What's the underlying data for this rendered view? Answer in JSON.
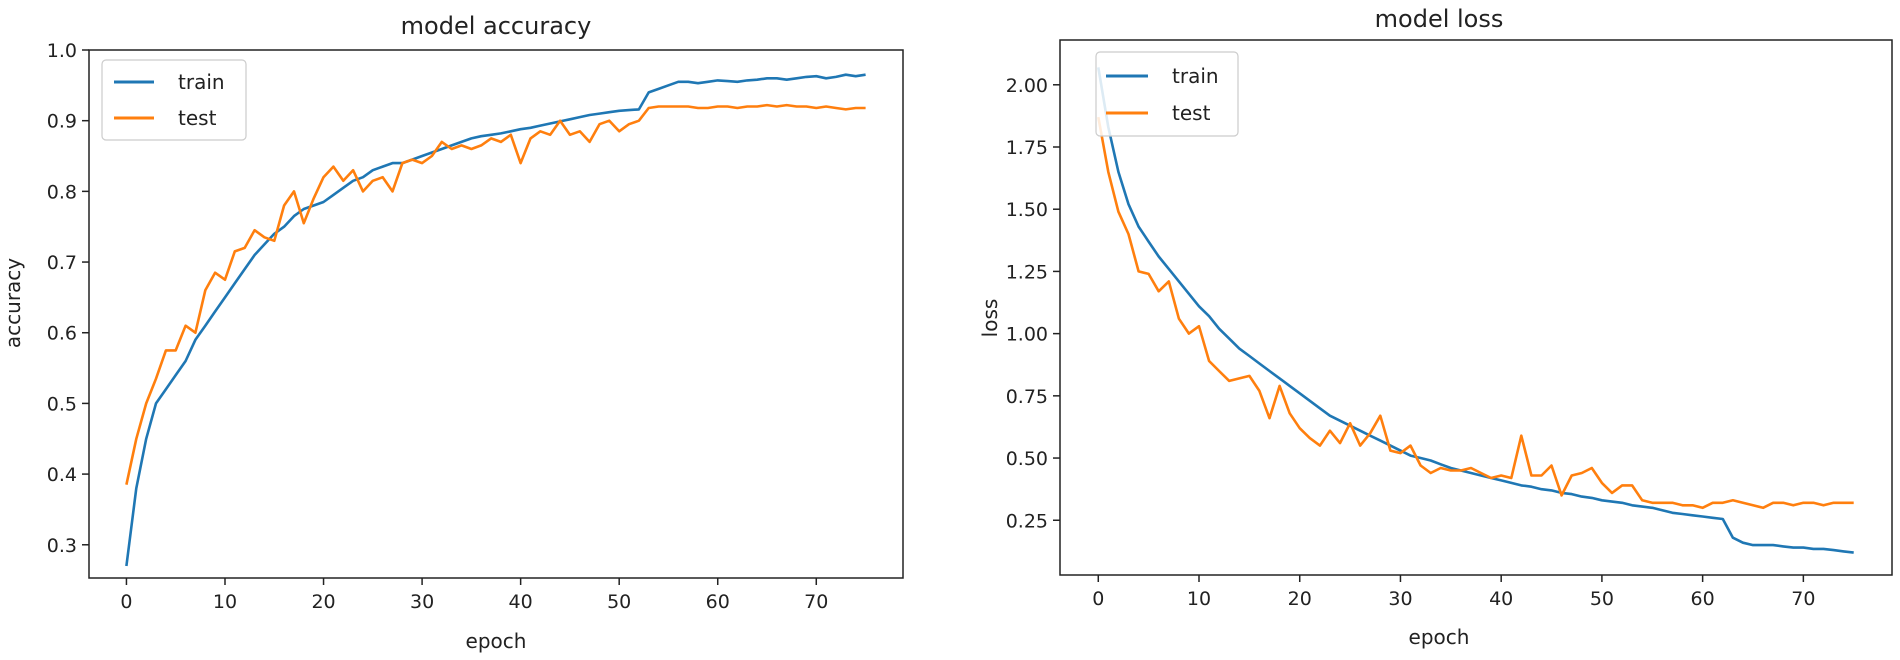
{
  "colors": {
    "train": "#1f77b4",
    "test": "#ff7f0e",
    "axis": "#222222"
  },
  "chart_data": [
    {
      "type": "line",
      "title": "model accuracy",
      "xlabel": "epoch",
      "ylabel": "accuracy",
      "xlim": [
        -3.8,
        78.8
      ],
      "ylim": [
        0.253,
        1.0
      ],
      "xticks": [
        0,
        10,
        20,
        30,
        40,
        50,
        60,
        70
      ],
      "yticks": [
        0.3,
        0.4,
        0.5,
        0.6,
        0.7,
        0.8,
        0.9,
        1.0
      ],
      "ytick_labels": [
        "0.3",
        "0.4",
        "0.5",
        "0.6",
        "0.7",
        "0.8",
        "0.9",
        "1.0"
      ],
      "legend": {
        "location": "upper-left",
        "entries": [
          "train",
          "test"
        ]
      },
      "series": [
        {
          "name": "train",
          "values": [
            0.27,
            0.38,
            0.45,
            0.5,
            0.52,
            0.54,
            0.56,
            0.59,
            0.61,
            0.63,
            0.65,
            0.67,
            0.69,
            0.71,
            0.725,
            0.74,
            0.75,
            0.765,
            0.775,
            0.78,
            0.785,
            0.795,
            0.805,
            0.815,
            0.82,
            0.83,
            0.835,
            0.84,
            0.84,
            0.845,
            0.85,
            0.855,
            0.86,
            0.865,
            0.87,
            0.875,
            0.878,
            0.88,
            0.882,
            0.885,
            0.888,
            0.89,
            0.893,
            0.896,
            0.899,
            0.902,
            0.905,
            0.908,
            0.91,
            0.912,
            0.914,
            0.915,
            0.916,
            0.94,
            0.945,
            0.95,
            0.955,
            0.955,
            0.953,
            0.955,
            0.957,
            0.956,
            0.955,
            0.957,
            0.958,
            0.96,
            0.96,
            0.958,
            0.96,
            0.962,
            0.963,
            0.96,
            0.962,
            0.965,
            0.963,
            0.965
          ]
        },
        {
          "name": "test",
          "values": [
            0.385,
            0.45,
            0.5,
            0.535,
            0.575,
            0.575,
            0.61,
            0.6,
            0.66,
            0.685,
            0.675,
            0.715,
            0.72,
            0.745,
            0.735,
            0.73,
            0.78,
            0.8,
            0.755,
            0.79,
            0.82,
            0.835,
            0.815,
            0.83,
            0.8,
            0.815,
            0.82,
            0.8,
            0.84,
            0.845,
            0.84,
            0.85,
            0.87,
            0.86,
            0.865,
            0.86,
            0.865,
            0.875,
            0.87,
            0.88,
            0.84,
            0.875,
            0.885,
            0.88,
            0.9,
            0.88,
            0.885,
            0.87,
            0.895,
            0.9,
            0.885,
            0.895,
            0.9,
            0.918,
            0.92,
            0.92,
            0.92,
            0.92,
            0.918,
            0.918,
            0.92,
            0.92,
            0.918,
            0.92,
            0.92,
            0.922,
            0.92,
            0.922,
            0.92,
            0.92,
            0.918,
            0.92,
            0.918,
            0.916,
            0.918,
            0.918
          ]
        }
      ]
    },
    {
      "type": "line",
      "title": "model loss",
      "xlabel": "epoch",
      "ylabel": "loss",
      "xlim": [
        -3.8,
        78.8
      ],
      "ylim": [
        0.03,
        2.18
      ],
      "xticks": [
        0,
        10,
        20,
        30,
        40,
        50,
        60,
        70
      ],
      "yticks": [
        0.25,
        0.5,
        0.75,
        1.0,
        1.25,
        1.5,
        1.75,
        2.0
      ],
      "ytick_labels": [
        "0.25",
        "0.50",
        "0.75",
        "1.00",
        "1.25",
        "1.50",
        "1.75",
        "2.00"
      ],
      "legend": {
        "location": "upper-left",
        "entries": [
          "train",
          "test"
        ]
      },
      "series": [
        {
          "name": "train",
          "values": [
            2.07,
            1.83,
            1.65,
            1.52,
            1.43,
            1.37,
            1.31,
            1.26,
            1.21,
            1.16,
            1.11,
            1.07,
            1.02,
            0.98,
            0.94,
            0.91,
            0.88,
            0.85,
            0.82,
            0.79,
            0.76,
            0.73,
            0.7,
            0.67,
            0.65,
            0.63,
            0.61,
            0.59,
            0.57,
            0.55,
            0.53,
            0.51,
            0.5,
            0.49,
            0.475,
            0.46,
            0.45,
            0.44,
            0.43,
            0.42,
            0.41,
            0.4,
            0.39,
            0.385,
            0.375,
            0.37,
            0.36,
            0.355,
            0.345,
            0.34,
            0.33,
            0.325,
            0.32,
            0.31,
            0.305,
            0.3,
            0.29,
            0.28,
            0.275,
            0.27,
            0.265,
            0.26,
            0.255,
            0.18,
            0.16,
            0.15,
            0.15,
            0.15,
            0.145,
            0.14,
            0.14,
            0.135,
            0.135,
            0.13,
            0.125,
            0.12
          ]
        },
        {
          "name": "test",
          "values": [
            1.87,
            1.65,
            1.49,
            1.4,
            1.25,
            1.24,
            1.17,
            1.21,
            1.06,
            1.0,
            1.03,
            0.89,
            0.85,
            0.81,
            0.82,
            0.83,
            0.77,
            0.66,
            0.79,
            0.68,
            0.62,
            0.58,
            0.55,
            0.61,
            0.56,
            0.64,
            0.55,
            0.6,
            0.67,
            0.53,
            0.52,
            0.55,
            0.47,
            0.44,
            0.46,
            0.45,
            0.45,
            0.46,
            0.44,
            0.42,
            0.43,
            0.42,
            0.59,
            0.43,
            0.43,
            0.47,
            0.35,
            0.43,
            0.44,
            0.46,
            0.4,
            0.36,
            0.39,
            0.39,
            0.33,
            0.32,
            0.32,
            0.32,
            0.31,
            0.31,
            0.3,
            0.32,
            0.32,
            0.33,
            0.32,
            0.31,
            0.3,
            0.32,
            0.32,
            0.31,
            0.32,
            0.32,
            0.31,
            0.32,
            0.32,
            0.32
          ]
        }
      ]
    }
  ]
}
